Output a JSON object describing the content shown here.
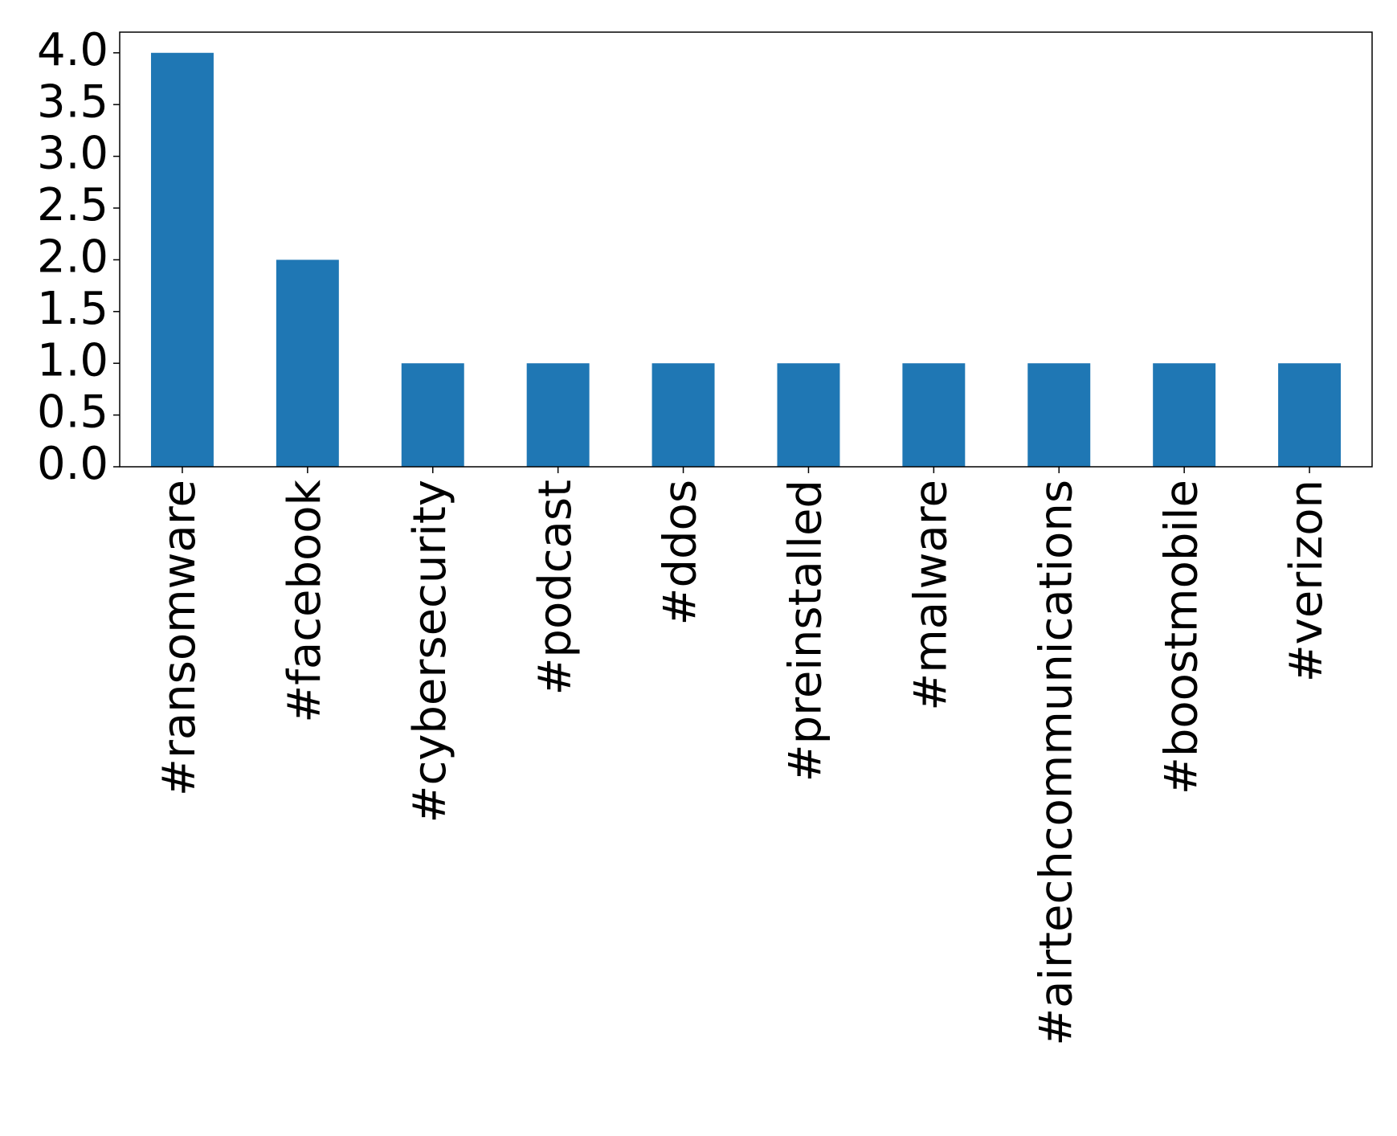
{
  "chart_data": {
    "type": "bar",
    "categories": [
      "#ransomware",
      "#facebook",
      "#cybersecurity",
      "#podcast",
      "#ddos",
      "#preinstalled",
      "#malware",
      "#airtechcommunications",
      "#boostmobile",
      "#verizon"
    ],
    "values": [
      4,
      2,
      1,
      1,
      1,
      1,
      1,
      1,
      1,
      1
    ],
    "color": "#1f77b4",
    "ylim": [
      0,
      4.2
    ],
    "yticks": [
      {
        "value": 0,
        "label": "0.0"
      },
      0.5,
      {
        "value": 1,
        "label": "1.0"
      },
      1.5,
      {
        "value": 2,
        "label": "2.0"
      },
      2.5,
      {
        "value": 3,
        "label": "3.0"
      },
      3.5,
      {
        "value": 4,
        "label": "4.0"
      }
    ],
    "grid": false
  }
}
